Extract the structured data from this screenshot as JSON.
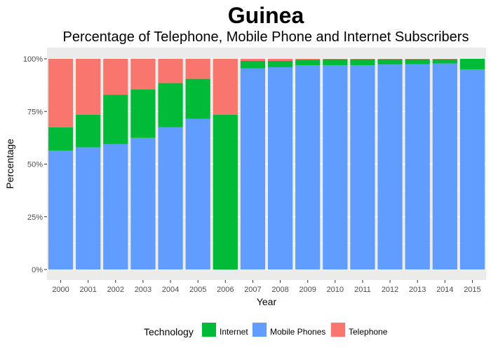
{
  "chart_data": {
    "type": "bar",
    "stacked": true,
    "title": "Guinea",
    "subtitle": "Percentage of Telephone, Mobile Phone and Internet Subscribers",
    "xlabel": "Year",
    "ylabel": "Percentage",
    "ylim": [
      0,
      100
    ],
    "y_ticks": [
      "0%",
      "25%",
      "50%",
      "75%",
      "100%"
    ],
    "y_tick_values": [
      0,
      25,
      50,
      75,
      100
    ],
    "grid": true,
    "legend_title": "Technology",
    "legend_position": "bottom",
    "categories": [
      "2000",
      "2001",
      "2002",
      "2003",
      "2004",
      "2005",
      "2006",
      "2007",
      "2008",
      "2009",
      "2010",
      "2011",
      "2012",
      "2013",
      "2014",
      "2015"
    ],
    "series": [
      {
        "name": "Mobile Phones",
        "color": "#619CFF",
        "values": [
          56.5,
          58,
          59.5,
          62.5,
          67.5,
          71.5,
          0,
          95.5,
          96,
          97,
          97,
          97,
          97.3,
          97.5,
          97.8,
          95
        ]
      },
      {
        "name": "Internet",
        "color": "#00BA38",
        "values": [
          11,
          15.5,
          23.5,
          23,
          21,
          19,
          73.5,
          3.5,
          3,
          2.5,
          2.8,
          2.8,
          2.5,
          2.3,
          2,
          5
        ]
      },
      {
        "name": "Telephone",
        "color": "#F8766D",
        "values": [
          32.5,
          26.5,
          17,
          14.5,
          11.5,
          9.5,
          26.5,
          1,
          1,
          0.5,
          0.2,
          0.2,
          0.2,
          0.2,
          0.2,
          0
        ]
      }
    ],
    "legend_order": [
      "Internet",
      "Mobile Phones",
      "Telephone"
    ]
  }
}
